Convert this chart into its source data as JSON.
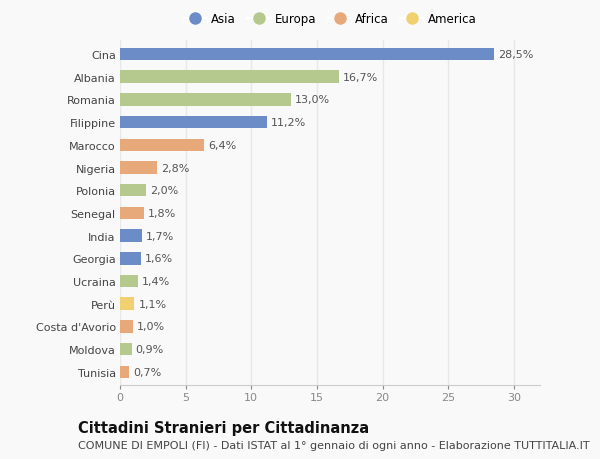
{
  "countries": [
    "Cina",
    "Albania",
    "Romania",
    "Filippine",
    "Marocco",
    "Nigeria",
    "Polonia",
    "Senegal",
    "India",
    "Georgia",
    "Ucraina",
    "Perù",
    "Costa d'Avorio",
    "Moldova",
    "Tunisia"
  ],
  "values": [
    28.5,
    16.7,
    13.0,
    11.2,
    6.4,
    2.8,
    2.0,
    1.8,
    1.7,
    1.6,
    1.4,
    1.1,
    1.0,
    0.9,
    0.7
  ],
  "labels": [
    "28,5%",
    "16,7%",
    "13,0%",
    "11,2%",
    "6,4%",
    "2,8%",
    "2,0%",
    "1,8%",
    "1,7%",
    "1,6%",
    "1,4%",
    "1,1%",
    "1,0%",
    "0,9%",
    "0,7%"
  ],
  "continents": [
    "Asia",
    "Europa",
    "Europa",
    "Asia",
    "Africa",
    "Africa",
    "Europa",
    "Africa",
    "Asia",
    "Asia",
    "Europa",
    "America",
    "Africa",
    "Europa",
    "Africa"
  ],
  "continent_colors": {
    "Asia": "#6b8cc7",
    "Europa": "#b5c98e",
    "Africa": "#e8a97a",
    "America": "#f0d070"
  },
  "legend_order": [
    "Asia",
    "Europa",
    "Africa",
    "America"
  ],
  "title": "Cittadini Stranieri per Cittadinanza",
  "subtitle": "COMUNE DI EMPOLI (FI) - Dati ISTAT al 1° gennaio di ogni anno - Elaborazione TUTTITALIA.IT",
  "xlim": [
    0,
    32
  ],
  "xticks": [
    0,
    5,
    10,
    15,
    20,
    25,
    30
  ],
  "bg_color": "#f9f9f9",
  "grid_color": "#e8e8e8",
  "bar_height": 0.55,
  "title_fontsize": 10.5,
  "subtitle_fontsize": 8,
  "label_fontsize": 8,
  "tick_fontsize": 8,
  "legend_fontsize": 8.5
}
